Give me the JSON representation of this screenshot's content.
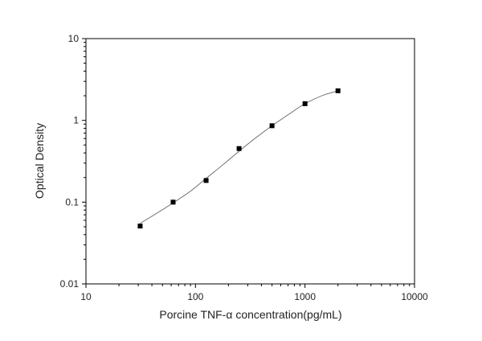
{
  "chart_data": {
    "type": "scatter",
    "title": "",
    "xlabel": "Porcine TNF-α  concentration(pg/mL)",
    "ylabel": "Optical Density",
    "x_scale": "log",
    "y_scale": "log",
    "xlim": [
      10,
      10000
    ],
    "ylim": [
      0.01,
      10
    ],
    "x_ticks": [
      "10",
      "100",
      "1000",
      "10000"
    ],
    "y_ticks": [
      "0.01",
      "0.1",
      "1",
      "10"
    ],
    "grid": false,
    "legend": "none",
    "colors": {
      "marker": "#000000",
      "curve": "#666666",
      "axis": "#000000"
    },
    "series": [
      {
        "x": [
          31.25,
          62.5,
          125,
          250,
          500,
          1000,
          2000
        ],
        "y": [
          0.051,
          0.1,
          0.184,
          0.452,
          0.86,
          1.6,
          2.3
        ]
      }
    ],
    "fit_curve": {
      "x": [
        31.25,
        45,
        62.5,
        90,
        125,
        180,
        250,
        360,
        500,
        720,
        1000,
        1450,
        2000
      ],
      "y": [
        0.055,
        0.074,
        0.098,
        0.136,
        0.195,
        0.29,
        0.42,
        0.62,
        0.86,
        1.2,
        1.6,
        2.02,
        2.3
      ]
    }
  }
}
